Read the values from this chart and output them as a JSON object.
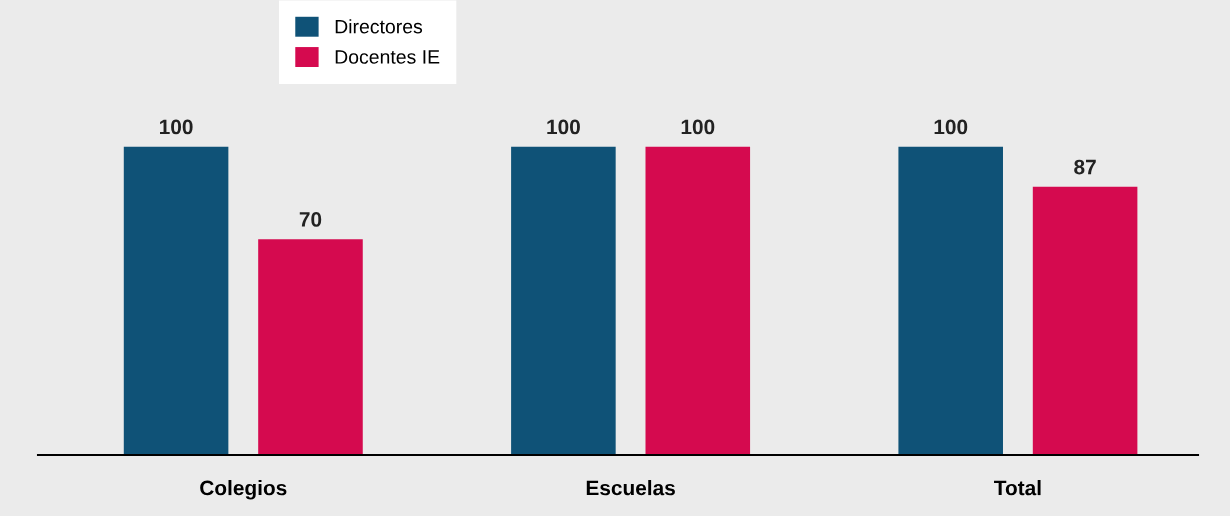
{
  "chart_data": {
    "type": "bar",
    "categories": [
      "Colegios",
      "Escuelas",
      "Total"
    ],
    "series": [
      {
        "name": "Directores",
        "color": "#0f5277",
        "values": [
          100,
          100,
          100
        ]
      },
      {
        "name": "Docentes IE",
        "color": "#d50a4f",
        "values": [
          70,
          100,
          87
        ]
      }
    ],
    "ylim": [
      0,
      146
    ],
    "tick_labels": "x",
    "data_labels": true,
    "legend": "top left",
    "grid": false
  }
}
